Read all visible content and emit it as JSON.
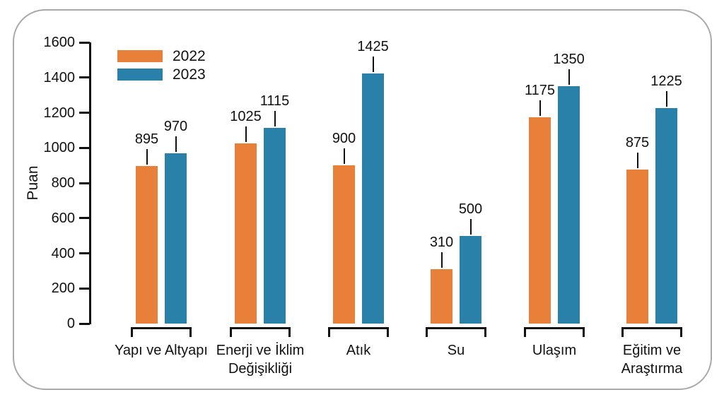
{
  "chart_data": {
    "type": "bar",
    "title": "",
    "xlabel": "",
    "ylabel": "Puan",
    "ylim": [
      0,
      1600
    ],
    "yticks": [
      0,
      200,
      400,
      600,
      800,
      1000,
      1200,
      1400,
      1600
    ],
    "grid": false,
    "legend_position": "top-left",
    "bar_value_labels": true,
    "categories": [
      "Yapı ve Altyapı",
      "Enerji ve İklim Değişikliği",
      "Atık",
      "Su",
      "Ulaşım",
      "Eğitim ve Araştırma"
    ],
    "series": [
      {
        "name": "2022",
        "color": "#E8803A",
        "values": [
          895,
          1025,
          900,
          310,
          1175,
          875
        ]
      },
      {
        "name": "2023",
        "color": "#2980A8",
        "values": [
          970,
          1115,
          1425,
          500,
          1350,
          1225
        ]
      }
    ]
  },
  "colors": {
    "series_2022": "#E8803A",
    "series_2023": "#2980A8",
    "axis": "#111111",
    "card_border": "#a9a9a9",
    "background": "#ffffff"
  }
}
